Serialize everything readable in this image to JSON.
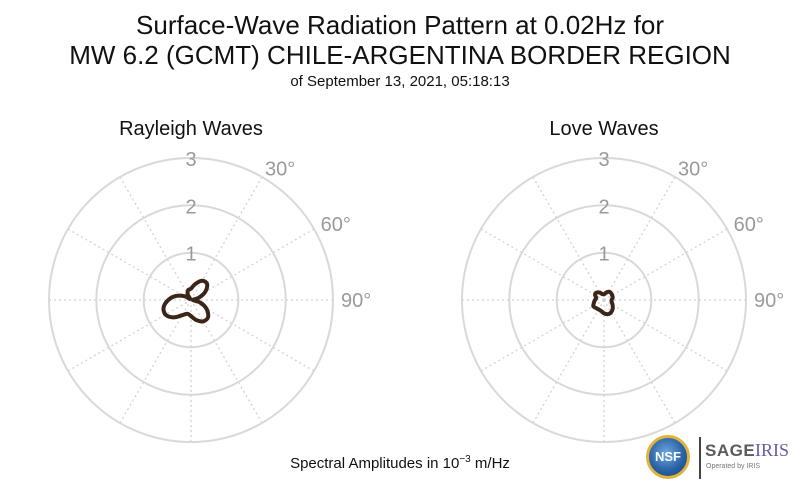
{
  "title": {
    "line1": "Surface-Wave Radiation Pattern at 0.02Hz for",
    "line2": "MW 6.2 (GCMT) CHILE-ARGENTINA BORDER REGION",
    "subtitle": "of September 13, 2021, 05:18:13"
  },
  "footnote": {
    "prefix": "Spectral Amplitudes in 10",
    "exponent": "−3",
    "suffix": " m/Hz"
  },
  "logos": {
    "nsf": "NSF",
    "sage": "SAGE",
    "iris": "IRIS",
    "operated": "Operated by IRIS"
  },
  "colors": {
    "pattern": "#3b2418",
    "grid": "#d9d9d9",
    "tick": "#9a9a9a"
  },
  "chart_data": [
    {
      "type": "polar",
      "title": "Rayleigh Waves",
      "r_ticks": [
        "1",
        "2",
        "3"
      ],
      "r_range": [
        0,
        3
      ],
      "angle_ticks": [
        "30°",
        "60°",
        "90°"
      ],
      "angle_tick_values": [
        30,
        60,
        90
      ],
      "angle_gridlines_deg": [
        30,
        60,
        90,
        120,
        150,
        180,
        210,
        240,
        270,
        300,
        330
      ],
      "grid": true,
      "pattern": {
        "azimuth_deg": [
          0,
          15,
          30,
          45,
          60,
          75,
          90,
          105,
          120,
          135,
          150,
          165,
          180,
          195,
          210,
          225,
          240,
          255,
          270,
          285,
          300,
          315,
          330,
          345
        ],
        "amplitude": [
          0.24,
          0.35,
          0.47,
          0.48,
          0.35,
          0.16,
          0.04,
          0.2,
          0.38,
          0.51,
          0.52,
          0.44,
          0.34,
          0.3,
          0.37,
          0.52,
          0.62,
          0.6,
          0.48,
          0.33,
          0.16,
          0.03,
          0.14,
          0.22
        ]
      }
    },
    {
      "type": "polar",
      "title": "Love Waves",
      "r_ticks": [
        "1",
        "2",
        "3"
      ],
      "r_range": [
        0,
        3
      ],
      "angle_ticks": [
        "30°",
        "60°",
        "90°"
      ],
      "angle_tick_values": [
        30,
        60,
        90
      ],
      "angle_gridlines_deg": [
        30,
        60,
        90,
        120,
        150,
        180,
        210,
        240,
        270,
        300,
        330
      ],
      "grid": true,
      "pattern": {
        "azimuth_deg": [
          0,
          15,
          30,
          45,
          60,
          75,
          90,
          105,
          120,
          135,
          150,
          165,
          180,
          195,
          210,
          225,
          240,
          255,
          270,
          285,
          300,
          315,
          330,
          345
        ],
        "amplitude": [
          0.12,
          0.16,
          0.2,
          0.21,
          0.2,
          0.19,
          0.16,
          0.17,
          0.21,
          0.26,
          0.3,
          0.31,
          0.28,
          0.24,
          0.23,
          0.24,
          0.26,
          0.22,
          0.19,
          0.17,
          0.22,
          0.22,
          0.18,
          0.13
        ]
      }
    }
  ]
}
